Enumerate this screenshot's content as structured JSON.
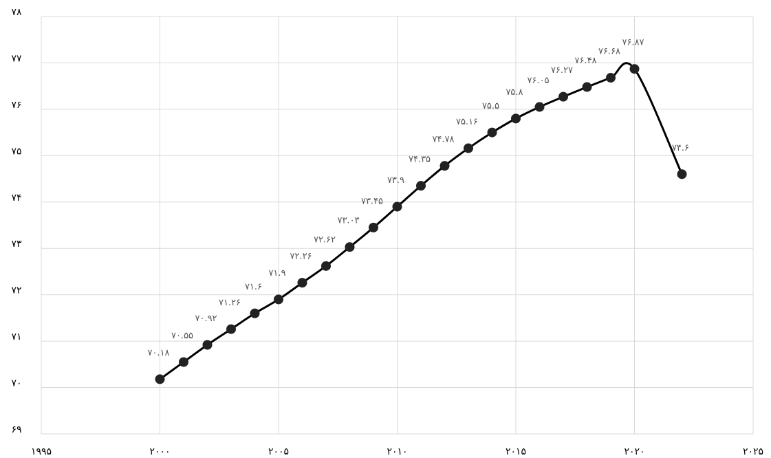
{
  "chart_data": {
    "type": "line",
    "x": [
      2000,
      2001,
      2002,
      2003,
      2004,
      2005,
      2006,
      2007,
      2008,
      2009,
      2010,
      2011,
      2012,
      2013,
      2014,
      2015,
      2016,
      2017,
      2018,
      2019,
      2020,
      2022
    ],
    "series": [
      {
        "color": "#000000",
        "values": [
          70.18,
          70.55,
          70.92,
          71.26,
          71.6,
          71.9,
          72.26,
          72.62,
          73.03,
          73.45,
          73.9,
          74.35,
          74.78,
          75.16,
          75.5,
          75.8,
          76.05,
          76.27,
          76.48,
          76.68,
          76.87,
          74.6
        ],
        "value_labels": [
          "۷۰.۱۸",
          "۷۰.۵۵",
          "۷۰.۹۲",
          "۷۱.۲۶",
          "۷۱.۶",
          "۷۱.۹",
          "۷۲.۲۶",
          "۷۲.۶۲",
          "۷۳.۰۳",
          "۷۳.۴۵",
          "۷۳.۹",
          "۷۴.۳۵",
          "۷۴.۷۸",
          "۷۵.۱۶",
          "۷۵.۵",
          "۷۵.۸",
          "۷۶.۰۵",
          "۷۶.۲۷",
          "۷۶.۴۸",
          "۷۶.۶۸",
          "۷۶.۸۷",
          "۷۴.۶"
        ]
      }
    ],
    "xlim": [
      1995,
      2025
    ],
    "xticks": [
      {
        "value": 1995,
        "label": "۱۹۹۵"
      },
      {
        "value": 2000,
        "label": "۲۰۰۰"
      },
      {
        "value": 2005,
        "label": "۲۰۰۵"
      },
      {
        "value": 2010,
        "label": "۲۰۱۰"
      },
      {
        "value": 2015,
        "label": "۲۰۱۵"
      },
      {
        "value": 2020,
        "label": "۲۰۲۰"
      },
      {
        "value": 2025,
        "label": "۲۰۲۵"
      }
    ],
    "ylim": [
      69,
      78
    ],
    "yticks": [
      {
        "value": 69,
        "label": "۶۹"
      },
      {
        "value": 70,
        "label": "۷۰"
      },
      {
        "value": 71,
        "label": "۷۱"
      },
      {
        "value": 72,
        "label": "۷۲"
      },
      {
        "value": 73,
        "label": "۷۳"
      },
      {
        "value": 74,
        "label": "۷۴"
      },
      {
        "value": 75,
        "label": "۷۵"
      },
      {
        "value": 76,
        "label": "۷۶"
      },
      {
        "value": 77,
        "label": "۷۷"
      },
      {
        "value": 78,
        "label": "۷۸"
      }
    ],
    "grid": true
  }
}
